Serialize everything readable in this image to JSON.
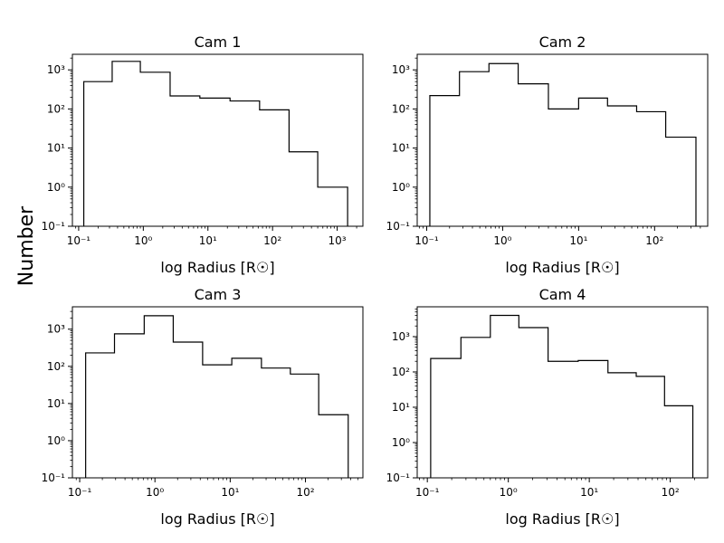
{
  "figure": {
    "ylabel": "Number",
    "colors": {
      "background": "#ffffff",
      "line": "#000000"
    }
  },
  "chart_data": [
    {
      "type": "bar",
      "style": "step-histogram",
      "title": "Cam 1",
      "xlabel": "log Radius [R☉]",
      "ylabel": "Number",
      "xscale": "log",
      "yscale": "log",
      "xlim": [
        0.08,
        2500
      ],
      "ylim": [
        0.1,
        2500
      ],
      "xticks": [
        0.1,
        1,
        10,
        100,
        1000
      ],
      "xtick_labels": [
        "10⁻¹",
        "10⁰",
        "10¹",
        "10²",
        "10³"
      ],
      "yticks": [
        0.1,
        1,
        10,
        100,
        1000
      ],
      "ytick_labels": [
        "10⁻¹",
        "10⁰",
        "10¹",
        "10²",
        "10³"
      ],
      "bin_edges": [
        0.12,
        0.33,
        0.9,
        2.6,
        7.5,
        22,
        63,
        180,
        500,
        1450
      ],
      "counts": [
        500,
        1650,
        870,
        215,
        190,
        160,
        95,
        8,
        1
      ]
    },
    {
      "type": "bar",
      "style": "step-histogram",
      "title": "Cam 2",
      "xlabel": "log Radius [R☉]",
      "ylabel": "Number",
      "xscale": "log",
      "yscale": "log",
      "xlim": [
        0.075,
        500
      ],
      "ylim": [
        0.1,
        2500
      ],
      "xticks": [
        0.1,
        1,
        10,
        100
      ],
      "xtick_labels": [
        "10⁻¹",
        "10⁰",
        "10¹",
        "10²"
      ],
      "yticks": [
        0.1,
        1,
        10,
        100,
        1000
      ],
      "ytick_labels": [
        "10⁻¹",
        "10⁰",
        "10¹",
        "10²",
        "10³"
      ],
      "bin_edges": [
        0.11,
        0.27,
        0.66,
        1.6,
        4,
        10,
        24,
        58,
        140,
        350
      ],
      "counts": [
        220,
        900,
        1450,
        440,
        100,
        190,
        120,
        85,
        19
      ]
    },
    {
      "type": "bar",
      "style": "step-histogram",
      "title": "Cam 3",
      "xlabel": "log Radius [R☉]",
      "ylabel": "Number",
      "xscale": "log",
      "yscale": "log",
      "xlim": [
        0.08,
        580
      ],
      "ylim": [
        0.1,
        4000
      ],
      "xticks": [
        0.1,
        1,
        10,
        100
      ],
      "xtick_labels": [
        "10⁻¹",
        "10⁰",
        "10¹",
        "10²"
      ],
      "yticks": [
        0.1,
        1,
        10,
        100,
        1000
      ],
      "ytick_labels": [
        "10⁻¹",
        "10⁰",
        "10¹",
        "10²",
        "10³"
      ],
      "bin_edges": [
        0.12,
        0.29,
        0.72,
        1.75,
        4.3,
        10.5,
        26,
        63,
        150,
        370
      ],
      "counts": [
        230,
        750,
        2300,
        450,
        110,
        165,
        90,
        62,
        5
      ]
    },
    {
      "type": "bar",
      "style": "step-histogram",
      "title": "Cam 4",
      "xlabel": "log Radius [R☉]",
      "ylabel": "Number",
      "xscale": "log",
      "yscale": "log",
      "xlim": [
        0.075,
        290
      ],
      "ylim": [
        0.1,
        7000
      ],
      "xticks": [
        0.1,
        1,
        10,
        100
      ],
      "xtick_labels": [
        "10⁻¹",
        "10⁰",
        "10¹",
        "10²"
      ],
      "yticks": [
        0.1,
        1,
        10,
        100,
        1000
      ],
      "ytick_labels": [
        "10⁻¹",
        "10⁰",
        "10¹",
        "10²",
        "10³"
      ],
      "bin_edges": [
        0.11,
        0.26,
        0.6,
        1.35,
        3.1,
        7.3,
        17,
        38,
        85,
        190
      ],
      "counts": [
        240,
        950,
        4000,
        1800,
        200,
        210,
        95,
        75,
        11
      ]
    }
  ]
}
